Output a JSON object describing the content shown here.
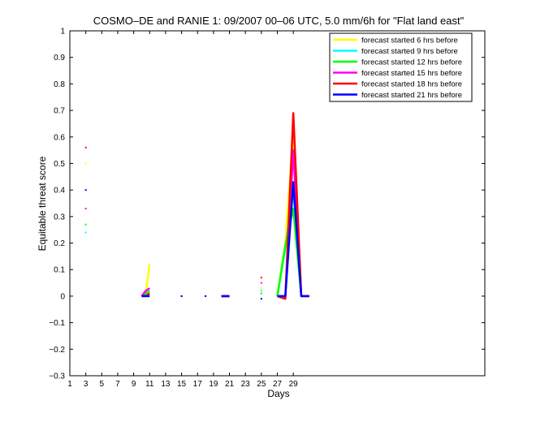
{
  "chart_data": {
    "type": "line",
    "title": "COSMO–DE and RANIE 1: 09/2007 00–06 UTC, 5.0 mm/6h for \"Flat land east\"",
    "xlabel": "Days",
    "ylabel": "Equitable threat score",
    "xlim": [
      1,
      53
    ],
    "ylim": [
      -0.3,
      1
    ],
    "xticks": [
      1,
      3,
      5,
      7,
      9,
      11,
      13,
      15,
      17,
      19,
      21,
      23,
      25,
      27,
      29
    ],
    "yticks": [
      -0.3,
      -0.2,
      -0.1,
      0,
      0.1,
      0.2,
      0.3,
      0.4,
      0.5,
      0.6,
      0.7,
      0.8,
      0.9,
      1
    ],
    "ytick_labels": [
      "−0.3",
      "−0.2",
      "−0.1",
      "0",
      "0.1",
      "0.2",
      "0.3",
      "0.4",
      "0.5",
      "0.6",
      "0.7",
      "0.8",
      "0.9",
      "1"
    ],
    "legend_position": "top-right",
    "grid": false,
    "series": [
      {
        "name": "forecast started 6 hrs before",
        "color": "#ffff00",
        "x": [
          3,
          10,
          10.5,
          11,
          15,
          18,
          20,
          21,
          25,
          27,
          28,
          29,
          30,
          31
        ],
        "y": [
          0.5,
          0.0,
          0.01,
          0.12,
          0.0,
          0.0,
          0.0,
          0.0,
          0.03,
          0.0,
          0.2,
          0.62,
          0.0,
          0.0
        ]
      },
      {
        "name": "forecast started 9 hrs before",
        "color": "#00ffff",
        "x": [
          3,
          10,
          10.5,
          11,
          15,
          18,
          20,
          21,
          25,
          27,
          28,
          29,
          30,
          31
        ],
        "y": [
          0.24,
          0.0,
          0.01,
          0.02,
          0.0,
          0.0,
          0.0,
          0.0,
          0.02,
          0.0,
          0.18,
          0.4,
          0.0,
          0.0
        ]
      },
      {
        "name": "forecast started 12 hrs before",
        "color": "#00ff00",
        "x": [
          3,
          10,
          10.5,
          11,
          15,
          18,
          20,
          21,
          25,
          27,
          28,
          29,
          30,
          31
        ],
        "y": [
          0.27,
          0.0,
          0.01,
          0.02,
          0.0,
          0.0,
          0.0,
          0.0,
          0.01,
          0.0,
          0.19,
          0.33,
          0.0,
          0.0
        ]
      },
      {
        "name": "forecast started 15 hrs before",
        "color": "#ff00ff",
        "x": [
          3,
          10,
          10.5,
          11,
          15,
          18,
          20,
          21,
          25,
          27,
          28,
          29,
          30,
          31
        ],
        "y": [
          0.33,
          0.0,
          0.02,
          0.03,
          0.0,
          0.0,
          0.0,
          0.0,
          0.05,
          0.0,
          0.0,
          0.55,
          0.0,
          0.0
        ]
      },
      {
        "name": "forecast started 18 hrs before",
        "color": "#ff0000",
        "x": [
          3,
          10,
          10.5,
          11,
          15,
          18,
          20,
          21,
          25,
          27,
          28,
          29,
          30,
          31
        ],
        "y": [
          0.56,
          0.0,
          0.0,
          0.01,
          0.0,
          0.0,
          0.0,
          0.0,
          0.07,
          0.0,
          -0.01,
          0.69,
          0.0,
          0.0
        ]
      },
      {
        "name": "forecast started 21 hrs before",
        "color": "#0000ff",
        "x": [
          3,
          10,
          10.5,
          11,
          15,
          18,
          20,
          21,
          25,
          27,
          28,
          29,
          30,
          31
        ],
        "y": [
          0.4,
          0.0,
          0.0,
          0.0,
          0.0,
          0.0,
          0.0,
          0.0,
          -0.01,
          0.0,
          0.0,
          0.43,
          0.0,
          0.0
        ]
      }
    ]
  }
}
